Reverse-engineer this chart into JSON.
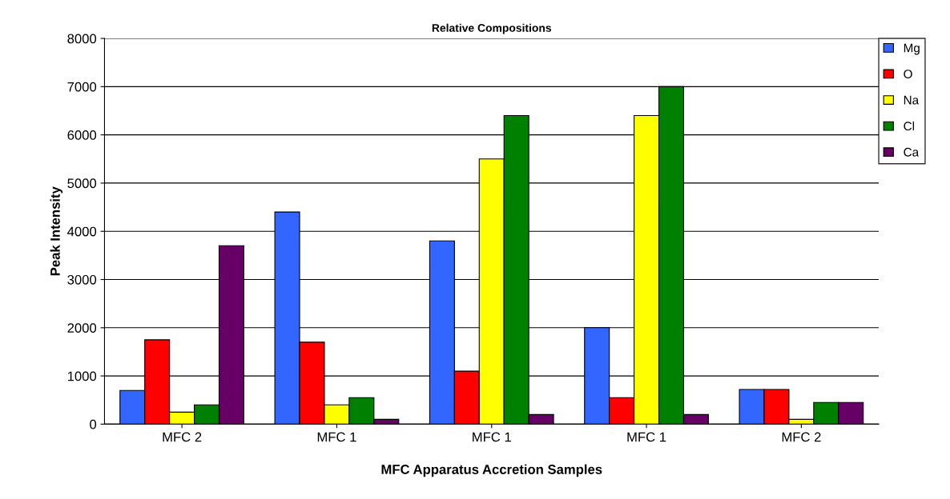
{
  "chart_data": {
    "type": "bar",
    "title": "Relative Compositions",
    "xlabel": "MFC Apparatus Accretion Samples",
    "ylabel": "Peak Intensity",
    "categories": [
      "MFC 2",
      "MFC 1",
      "MFC 1",
      "MFC 1",
      "MFC 2"
    ],
    "series": [
      {
        "name": "Mg",
        "color": "#3366ff",
        "values": [
          700,
          4400,
          3800,
          2000,
          720
        ]
      },
      {
        "name": "O",
        "color": "#ff0000",
        "values": [
          1750,
          1700,
          1100,
          550,
          720
        ]
      },
      {
        "name": "Na",
        "color": "#ffff00",
        "values": [
          250,
          400,
          5500,
          6400,
          100
        ]
      },
      {
        "name": "Cl",
        "color": "#008000",
        "values": [
          400,
          550,
          6400,
          7000,
          450
        ]
      },
      {
        "name": "Ca",
        "color": "#660066",
        "values": [
          3700,
          100,
          200,
          200,
          450
        ]
      }
    ],
    "ylim": [
      0,
      8000
    ],
    "yticks": [
      0,
      1000,
      2000,
      3000,
      4000,
      5000,
      6000,
      7000,
      8000
    ],
    "grid": "y",
    "legend": "top right"
  }
}
